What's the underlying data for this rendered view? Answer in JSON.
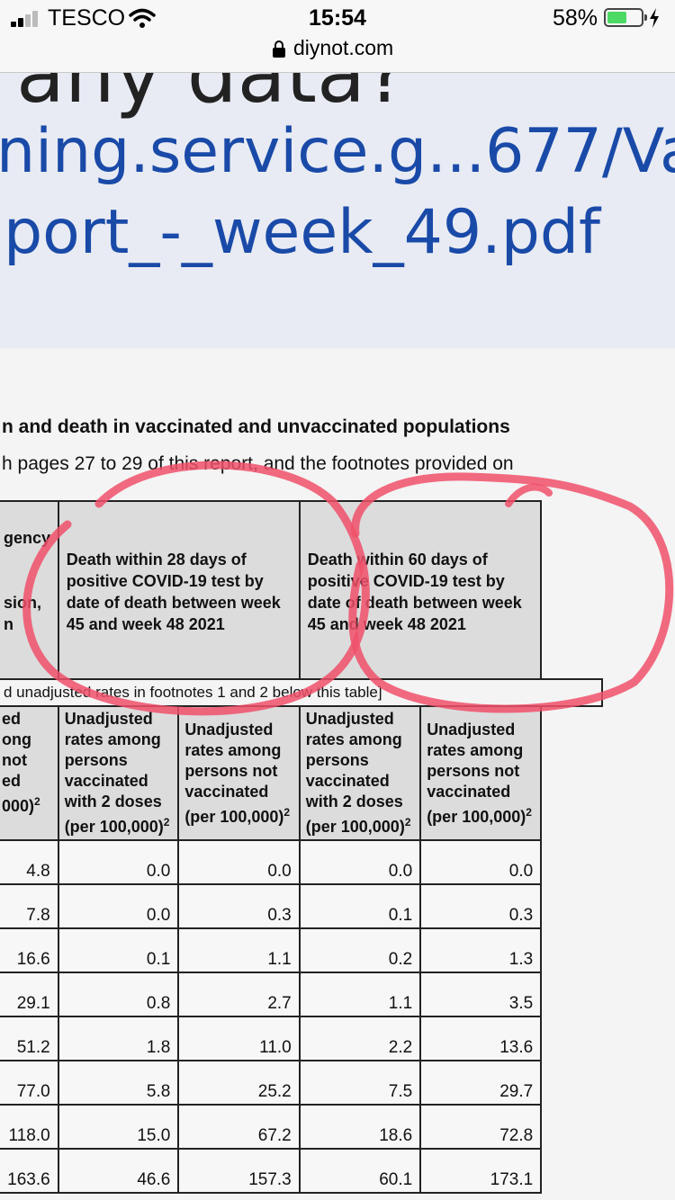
{
  "status_bar": {
    "carrier": "TESCO",
    "time": "15:54",
    "battery_percent": "58%",
    "battery_level": 0.58,
    "domain": "diynot.com"
  },
  "quote": {
    "top_line": "any data?",
    "link_line1": "ning.service.g...677/Va",
    "link_line2": "port_-_week_49.pdf"
  },
  "document": {
    "heading": "n and death in vaccinated and unvaccinated populations",
    "subline": "h pages 27 to 29 of this report, and the footnotes provided on",
    "first_col_header": [
      "gency",
      "",
      "",
      "sion,",
      "n"
    ],
    "group_header_1": "Death within 28 days of positive COVID-19 test by date of death between week 45 and week 48 2021",
    "group_header_2": "Death within 60 days of positive COVID-19 test by date of death between week 45 and week 48 2021",
    "note_row": "d unadjusted rates in footnotes 1 and 2 below this table]",
    "first_sub_header": [
      "ed",
      "ong",
      "not",
      "ed",
      "000)"
    ],
    "sub_header_vaccinated": "Unadjusted rates among persons vaccinated with 2 doses (per 100,000)",
    "sub_header_unvaccinated": "Unadjusted rates among persons not vaccinated (per 100,000)",
    "sup": "2",
    "rows": [
      [
        "4.8",
        "0.0",
        "0.0",
        "0.0",
        "0.0"
      ],
      [
        "7.8",
        "0.0",
        "0.3",
        "0.1",
        "0.3"
      ],
      [
        "16.6",
        "0.1",
        "1.1",
        "0.2",
        "1.3"
      ],
      [
        "29.1",
        "0.8",
        "2.7",
        "1.1",
        "3.5"
      ],
      [
        "51.2",
        "1.8",
        "11.0",
        "2.2",
        "13.6"
      ],
      [
        "77.0",
        "5.8",
        "25.2",
        "7.5",
        "29.7"
      ],
      [
        "118.0",
        "15.0",
        "67.2",
        "18.6",
        "72.8"
      ],
      [
        "163.6",
        "46.6",
        "157.3",
        "60.1",
        "173.1"
      ]
    ]
  },
  "colors": {
    "link_blue": "#1a4aa8",
    "quote_bg": "#e8ebf4",
    "pen_red": "#f0506a",
    "battery_green": "#4cd964"
  }
}
